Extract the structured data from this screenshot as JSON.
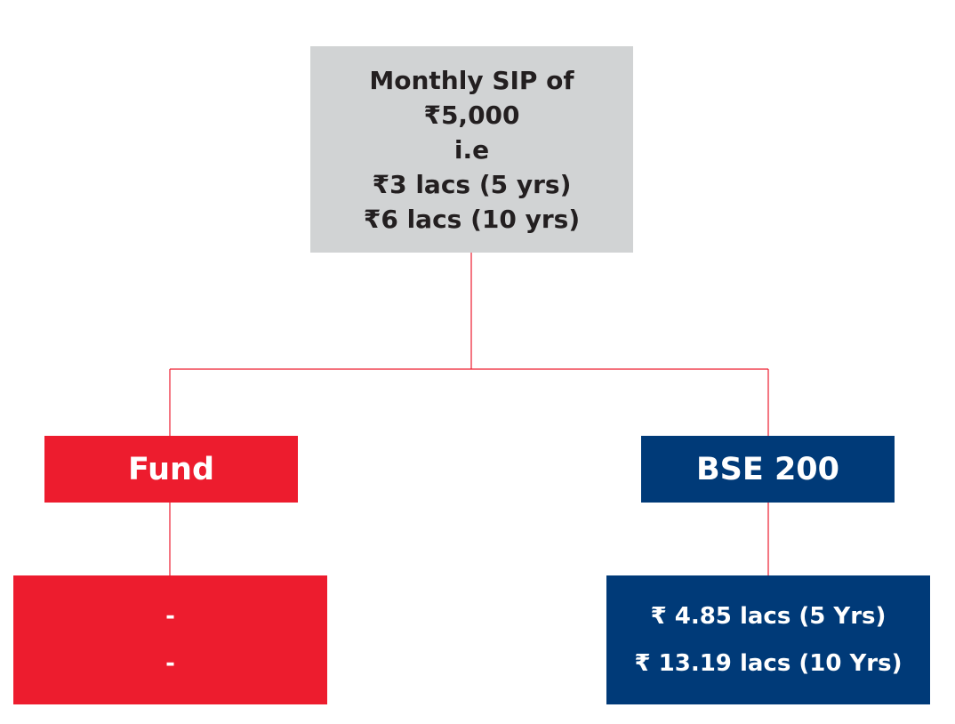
{
  "top_node": {
    "lines": [
      "Monthly SIP of",
      "₹5,000",
      "i.e",
      "₹3 lacs (5 yrs)",
      "₹6 lacs (10 yrs)"
    ]
  },
  "branches": [
    {
      "label": "Fund",
      "result_lines": [
        "-",
        "-"
      ]
    },
    {
      "label": "BSE 200",
      "result_lines": [
        "₹ 4.85 lacs (5 Yrs)",
        "₹ 13.19 lacs (10 Yrs)"
      ]
    }
  ]
}
